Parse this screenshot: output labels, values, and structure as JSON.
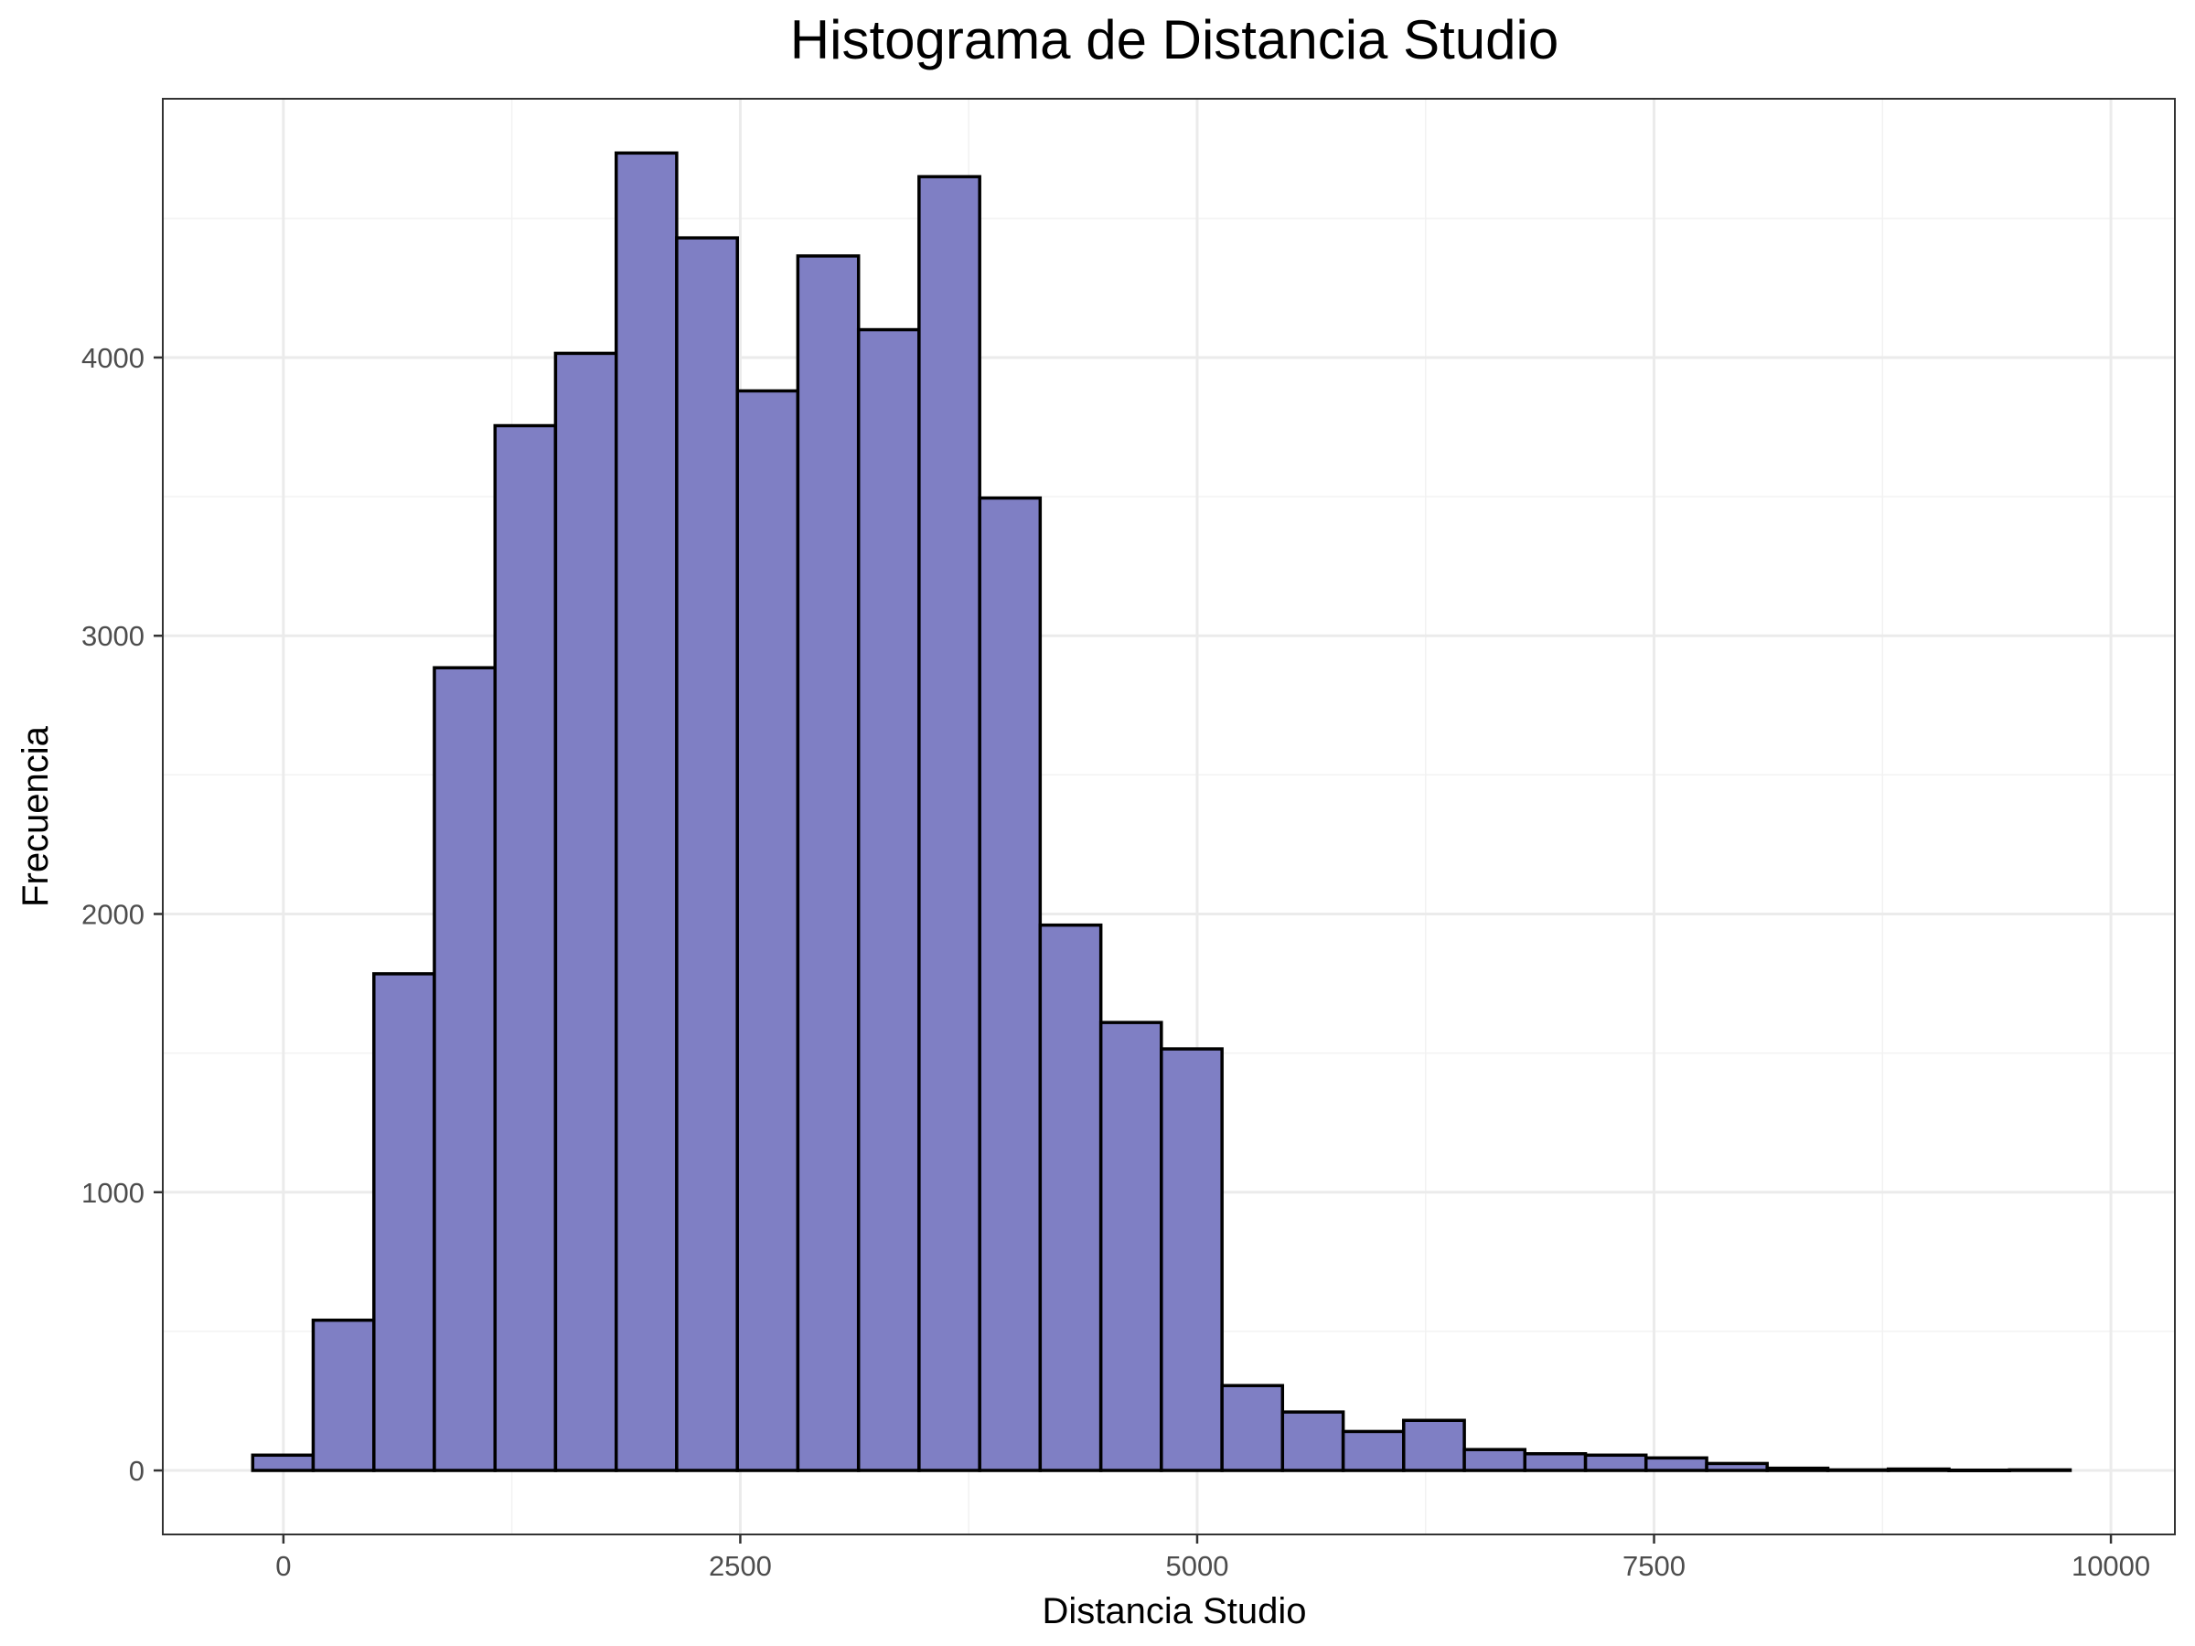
{
  "chart_data": {
    "type": "bar",
    "subtype": "histogram",
    "title": "Histograma de Distancia Studio",
    "xlabel": "Distancia Studio",
    "ylabel": "Frecuencia",
    "xlim": [
      -660,
      10350
    ],
    "ylim": [
      -230,
      4930
    ],
    "xticks": [
      0,
      2500,
      5000,
      7500,
      10000
    ],
    "xtick_labels": [
      "0",
      "2500",
      "5000",
      "7500",
      "10000"
    ],
    "yticks": [
      0,
      1000,
      2000,
      3000,
      4000
    ],
    "ytick_labels": [
      "0",
      "1000",
      "2000",
      "3000",
      "4000"
    ],
    "grid": true,
    "legend": "none",
    "bar_color": "#7f7fc4",
    "bar_edge_color": "#000000",
    "bins": [
      {
        "x0": -168,
        "x1": 163,
        "count": 55
      },
      {
        "x0": 163,
        "x1": 495,
        "count": 540
      },
      {
        "x0": 495,
        "x1": 826,
        "count": 1785
      },
      {
        "x0": 826,
        "x1": 1158,
        "count": 2885
      },
      {
        "x0": 1158,
        "x1": 1489,
        "count": 3755
      },
      {
        "x0": 1489,
        "x1": 1821,
        "count": 4015
      },
      {
        "x0": 1821,
        "x1": 2152,
        "count": 4735
      },
      {
        "x0": 2152,
        "x1": 2484,
        "count": 4430
      },
      {
        "x0": 2484,
        "x1": 2815,
        "count": 3880
      },
      {
        "x0": 2815,
        "x1": 3147,
        "count": 4365
      },
      {
        "x0": 3147,
        "x1": 3478,
        "count": 4100
      },
      {
        "x0": 3478,
        "x1": 3810,
        "count": 4650
      },
      {
        "x0": 3810,
        "x1": 4141,
        "count": 3495
      },
      {
        "x0": 4141,
        "x1": 4473,
        "count": 1960
      },
      {
        "x0": 4473,
        "x1": 4804,
        "count": 1610
      },
      {
        "x0": 4804,
        "x1": 5136,
        "count": 1515
      },
      {
        "x0": 5136,
        "x1": 5467,
        "count": 305
      },
      {
        "x0": 5467,
        "x1": 5799,
        "count": 210
      },
      {
        "x0": 5799,
        "x1": 6130,
        "count": 140
      },
      {
        "x0": 6130,
        "x1": 6462,
        "count": 180
      },
      {
        "x0": 6462,
        "x1": 6793,
        "count": 75
      },
      {
        "x0": 6793,
        "x1": 7125,
        "count": 60
      },
      {
        "x0": 7125,
        "x1": 7456,
        "count": 55
      },
      {
        "x0": 7456,
        "x1": 7788,
        "count": 45
      },
      {
        "x0": 7788,
        "x1": 8119,
        "count": 25
      },
      {
        "x0": 8119,
        "x1": 8451,
        "count": 8
      },
      {
        "x0": 8451,
        "x1": 8782,
        "count": 2
      },
      {
        "x0": 8782,
        "x1": 9114,
        "count": 5
      },
      {
        "x0": 9114,
        "x1": 9445,
        "count": 1
      },
      {
        "x0": 9445,
        "x1": 9777,
        "count": 2
      }
    ]
  }
}
